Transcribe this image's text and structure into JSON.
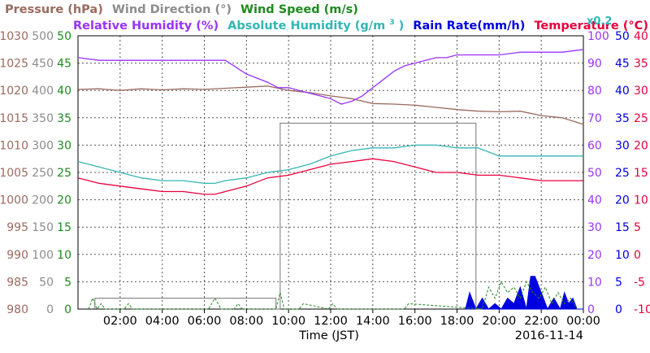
{
  "legend": {
    "pressure": "Pressure (hPa)",
    "wind_direction": "Wind Direction (°)",
    "wind_speed": "Wind Speed (m/s)",
    "humidity": "Relative Humidity (%)",
    "abs_humidity": "Absolute Humidity (g/m",
    "abs_humidity_sup": "3",
    "abs_humidity_tail": ")",
    "rain_rate": "Rain Rate(mm/h)",
    "temperature": "Temperature (°C)",
    "rain_scale": "x0.2"
  },
  "colors": {
    "pressure": "#9b6a5e",
    "wind_direction": "#8c8c8c",
    "wind_speed": "#1e8a1e",
    "humidity": "#9933ff",
    "abs_humidity": "#33b5b5",
    "rain_rate": "#0000e0",
    "temperature": "#e8003c"
  },
  "chart_data": {
    "type": "line",
    "xlabel": "Time (JST)",
    "date": "2016-11-14",
    "x_tick_labels": [
      "02:00",
      "04:00",
      "06:00",
      "08:00",
      "10:00",
      "12:00",
      "14:00",
      "16:00",
      "18:00",
      "20:00",
      "22:00",
      "00:00"
    ],
    "axes": {
      "pressure": {
        "ticks": [
          "1030",
          "1025",
          "1020",
          "1015",
          "1010",
          "1005",
          "1000",
          "995",
          "990",
          "985",
          "980"
        ],
        "range": [
          980,
          1030
        ]
      },
      "wind_direction": {
        "ticks": [
          "500",
          "450",
          "400",
          "350",
          "300",
          "250",
          "200",
          "150",
          "100",
          "50",
          "0"
        ],
        "range": [
          0,
          500
        ]
      },
      "wind_speed": {
        "ticks": [
          "50",
          "45",
          "40",
          "35",
          "30",
          "25",
          "20",
          "15",
          "10",
          "5",
          "0"
        ],
        "range": [
          0,
          50
        ]
      },
      "humidity": {
        "ticks": [
          "100",
          "90",
          "80",
          "70",
          "60",
          "50",
          "40",
          "30",
          "20",
          "10",
          "0"
        ],
        "range": [
          0,
          100
        ]
      },
      "rain_rate": {
        "ticks": [
          "50",
          "45",
          "40",
          "35",
          "30",
          "25",
          "20",
          "15",
          "10",
          "5",
          "0"
        ],
        "range": [
          0,
          50
        ]
      },
      "temperature": {
        "ticks": [
          "40",
          "35",
          "30",
          "25",
          "20",
          "15",
          "10",
          "5",
          "0",
          "-5",
          "-10"
        ],
        "range": [
          -10,
          40
        ]
      }
    },
    "series": [
      {
        "name": "Relative Humidity (%)",
        "key": "humidity",
        "axis": "humidity",
        "x": [
          0,
          1,
          2,
          3,
          4,
          5,
          6,
          7,
          8,
          9,
          9.5,
          10,
          10.5,
          11,
          11.5,
          12,
          12.5,
          13,
          13.5,
          14,
          14.5,
          15,
          15.5,
          16,
          16.5,
          17,
          17.5,
          18,
          19,
          20,
          21,
          22,
          23,
          24
        ],
        "y": [
          92,
          91,
          91,
          91,
          91,
          91,
          91,
          91,
          86,
          83,
          81,
          81,
          80,
          79,
          78,
          77,
          75,
          76,
          78,
          81,
          84,
          87,
          89,
          90,
          91,
          92,
          92,
          93,
          93,
          93,
          94,
          94,
          94,
          95
        ]
      },
      {
        "name": "Pressure (hPa)",
        "key": "pressure",
        "axis": "pressure",
        "x": [
          0,
          1,
          2,
          3,
          4,
          5,
          6,
          7,
          8,
          9,
          10,
          11,
          12,
          13,
          14,
          15,
          16,
          17,
          18,
          19,
          20,
          21,
          22,
          23,
          24
        ],
        "y": [
          1020.2,
          1020.3,
          1020.0,
          1020.3,
          1020.1,
          1020.3,
          1020.2,
          1020.4,
          1020.6,
          1020.8,
          1020.0,
          1019.6,
          1019.0,
          1018.5,
          1017.6,
          1017.5,
          1017.3,
          1016.9,
          1016.5,
          1016.2,
          1016.1,
          1016.2,
          1015.4,
          1015.0,
          1013.8
        ]
      },
      {
        "name": "Absolute Humidity (g/m3)",
        "key": "abs_humidity",
        "axis": "wind_speed",
        "x": [
          0,
          1,
          2,
          3,
          4,
          5,
          6,
          6.5,
          7,
          8,
          9,
          10,
          11,
          12,
          13,
          14,
          15,
          16,
          17,
          18,
          19,
          20,
          21,
          22,
          23,
          24
        ],
        "y": [
          27,
          26,
          25,
          24,
          23.5,
          23.5,
          23,
          23,
          23.5,
          24,
          25,
          25.5,
          26.5,
          28,
          29,
          29.5,
          29.5,
          30,
          30,
          29.5,
          29.5,
          28,
          28,
          28,
          28,
          28
        ]
      },
      {
        "name": "Temperature (°C)",
        "key": "temperature",
        "axis": "temperature",
        "x": [
          0,
          1,
          2,
          3,
          4,
          5,
          6,
          6.5,
          7,
          8,
          9,
          10,
          11,
          12,
          13,
          14,
          15,
          16,
          17,
          18,
          19,
          20,
          21,
          22,
          23,
          24
        ],
        "y": [
          14,
          13,
          12.5,
          12,
          11.5,
          11.5,
          11,
          11,
          11.5,
          12.5,
          14,
          14.5,
          15.5,
          16.5,
          17,
          17.5,
          17,
          16,
          15,
          15,
          14.5,
          14.5,
          14,
          13.5,
          13.5,
          13.5
        ]
      },
      {
        "name": "Wind Direction (°)",
        "key": "wind_direction",
        "axis": "wind_direction",
        "x": [
          0.8,
          0.8,
          9.4,
          9.4,
          9.6,
          9.6,
          18.9,
          18.9,
          19.2
        ],
        "y": [
          0,
          20,
          20,
          0,
          0,
          340,
          340,
          0,
          0
        ]
      },
      {
        "name": "Wind Speed (m/s)",
        "key": "wind_speed",
        "axis": "wind_speed",
        "x": [
          0.5,
          0.7,
          0.9,
          1.1,
          1.3,
          1.5,
          2.2,
          2.4,
          2.6,
          6.2,
          6.5,
          6.8,
          7.4,
          7.6,
          7.8,
          9.4,
          9.6,
          9.8,
          10.5,
          10.7,
          11.9,
          12.1,
          12.3,
          15.5,
          15.7,
          19.2,
          19.5,
          19.8,
          20.1,
          20.4,
          20.7,
          21.0,
          21.3,
          21.6,
          21.9,
          22.2,
          22.5,
          22.8,
          23.1,
          23.4,
          23.7
        ],
        "y": [
          0,
          2,
          0,
          1,
          0,
          0,
          0,
          1,
          0,
          0,
          2,
          0,
          0,
          1,
          0,
          0,
          3,
          0,
          0,
          1,
          0,
          1,
          0,
          0,
          1,
          0,
          4,
          2,
          5,
          3,
          4,
          2,
          5,
          3,
          2,
          4,
          1,
          3,
          1,
          2,
          0
        ]
      },
      {
        "name": "Rain Rate(mm/h)",
        "key": "rain_rate",
        "axis": "rain_rate",
        "x": [
          18.4,
          18.6,
          18.9,
          19.2,
          19.5,
          19.8,
          20.1,
          20.4,
          20.7,
          21.0,
          21.3,
          21.5,
          21.7,
          21.9,
          22.1,
          22.3,
          22.6,
          22.9,
          23.1,
          23.3,
          23.5,
          23.7,
          24.0
        ],
        "y": [
          0,
          3,
          0,
          2,
          0,
          1,
          0,
          2,
          1,
          4,
          0,
          6,
          6,
          4,
          2,
          0,
          2,
          0,
          3,
          1,
          2,
          0,
          0
        ]
      }
    ]
  }
}
